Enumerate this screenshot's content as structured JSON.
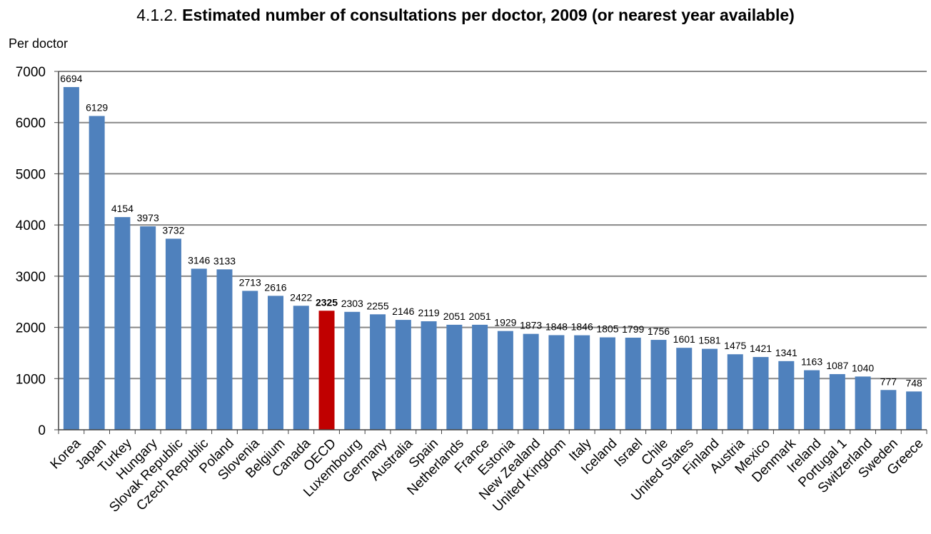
{
  "title_number": "4.1.2.",
  "title_text": "Estimated number of consultations per doctor, 2009 (or nearest year available)",
  "colors": {
    "bar": "#4f81bd",
    "highlight": "#c00000",
    "grid": "#888888",
    "axis": "#444444"
  },
  "chart_data": {
    "type": "bar",
    "title": "4.1.2. Estimated number of consultations per doctor, 2009 (or nearest year available)",
    "xlabel": "",
    "ylabel": "Per doctor",
    "ylim": [
      0,
      7000
    ],
    "yticks": [
      0,
      1000,
      2000,
      3000,
      4000,
      5000,
      6000,
      7000
    ],
    "grid": true,
    "highlight": "OECD",
    "categories": [
      "Korea",
      "Japan",
      "Turkey",
      "Hungary",
      "Slovak Republic",
      "Czech Republic",
      "Poland",
      "Slovenia",
      "Belgium",
      "Canada",
      "OECD",
      "Luxembourg",
      "Germany",
      "Australia",
      "Spain",
      "Netherlands",
      "France",
      "Estonia",
      "New Zealand",
      "United Kingdom",
      "Italy",
      "Iceland",
      "Israel",
      "Chile",
      "United States",
      "Finland",
      "Austria",
      "Mexico",
      "Denmark",
      "Ireland",
      "Portugal 1",
      "Switzerland",
      "Sweden",
      "Greece"
    ],
    "values": [
      6694,
      6129,
      4154,
      3973,
      3732,
      3146,
      3133,
      2713,
      2616,
      2422,
      2325,
      2303,
      2255,
      2146,
      2119,
      2051,
      2051,
      1929,
      1873,
      1848,
      1846,
      1805,
      1799,
      1756,
      1601,
      1581,
      1475,
      1421,
      1341,
      1163,
      1087,
      1040,
      777,
      748
    ],
    "data_labels": [
      "6694",
      "6129",
      "4154",
      "3973",
      "3732",
      "3146",
      "3133",
      "2713",
      "2616",
      "2422",
      "2325",
      "2303",
      "2255",
      "2146",
      "2119",
      "2051",
      "2051",
      "1929",
      "1873",
      "1848",
      "1846",
      "1805",
      "1799",
      "1756",
      "1601",
      "1581",
      "1475",
      "1421",
      "1341",
      "1163",
      "1087",
      "1040",
      "777",
      "748"
    ]
  }
}
